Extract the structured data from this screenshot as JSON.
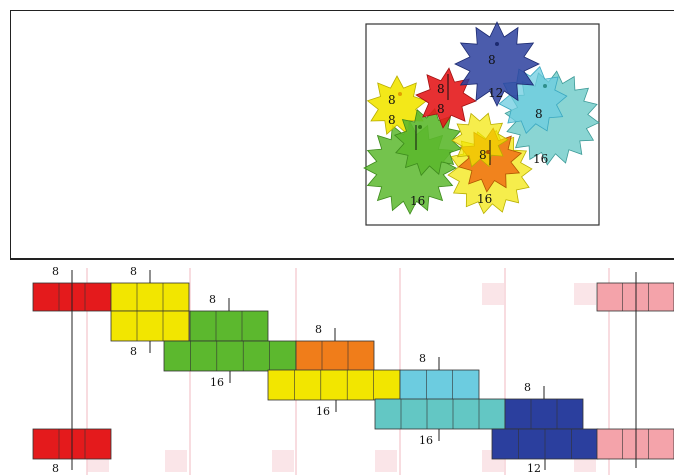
{
  "window": {
    "title": ""
  },
  "colors": {
    "red": "#e41a1c",
    "yellow": "#f2e600",
    "green": "#5cb82e",
    "orange": "#f07d1a",
    "sky": "#6ccce0",
    "teal": "#63c7c4",
    "navy": "#2b3f9e",
    "pink": "#f4a3aa",
    "ghost": "#f6d0d5"
  },
  "gear_view": {
    "gears": [
      {
        "color": "navy",
        "teeth": "8",
        "label": "8"
      },
      {
        "color": "navy",
        "teeth": "12",
        "label": "12"
      },
      {
        "color": "red",
        "teeth": "8",
        "label": "8"
      },
      {
        "color": "red",
        "teeth": "8",
        "label": "8"
      },
      {
        "color": "yellow",
        "teeth": "8",
        "label": "8"
      },
      {
        "color": "yellow",
        "teeth": "8",
        "label": "8"
      },
      {
        "color": "sky",
        "teeth": "8",
        "label": "8"
      },
      {
        "color": "teal",
        "teeth": "16",
        "label": "16"
      },
      {
        "color": "green",
        "teeth": "16",
        "label": "16"
      },
      {
        "color": "orange",
        "teeth": "8",
        "label": "8"
      },
      {
        "color": "yellow",
        "teeth": "16",
        "label": "16"
      }
    ]
  },
  "timeline": {
    "blocks": [
      {
        "id": "red-top",
        "color": "red"
      },
      {
        "id": "yellow-a",
        "color": "yellow"
      },
      {
        "id": "yellow-b",
        "color": "yellow"
      },
      {
        "id": "green-a",
        "color": "green"
      },
      {
        "id": "green-b",
        "color": "green"
      },
      {
        "id": "orange",
        "color": "orange"
      },
      {
        "id": "yellow-c",
        "color": "yellow"
      },
      {
        "id": "sky",
        "color": "sky"
      },
      {
        "id": "teal",
        "color": "teal"
      },
      {
        "id": "navy-a",
        "color": "navy"
      },
      {
        "id": "navy-b",
        "color": "navy"
      },
      {
        "id": "red-bottom",
        "color": "red"
      },
      {
        "id": "pink-top",
        "color": "pink"
      },
      {
        "id": "pink-bottom",
        "color": "pink"
      }
    ],
    "labels": [
      {
        "id": "lbl-red-top",
        "text": "8"
      },
      {
        "id": "lbl-yellow-a",
        "text": "8"
      },
      {
        "id": "lbl-green-a",
        "text": "8"
      },
      {
        "id": "lbl-yellow-b",
        "text": "8"
      },
      {
        "id": "lbl-orange",
        "text": "8"
      },
      {
        "id": "lbl-green-b",
        "text": "16"
      },
      {
        "id": "lbl-sky",
        "text": "8"
      },
      {
        "id": "lbl-yellow-c",
        "text": "16"
      },
      {
        "id": "lbl-navy-a",
        "text": "8"
      },
      {
        "id": "lbl-teal",
        "text": "16"
      },
      {
        "id": "lbl-red-bottom",
        "text": "8"
      },
      {
        "id": "lbl-navy-b",
        "text": "12"
      }
    ]
  }
}
